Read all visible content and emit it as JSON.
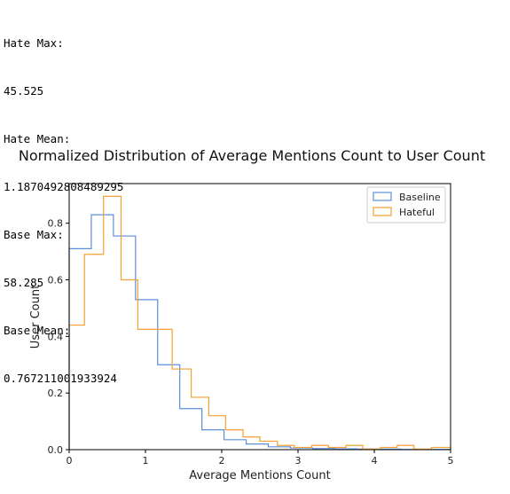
{
  "output_lines": [
    "Hate Max:",
    "45.525",
    "Hate Mean:",
    "1.1870492808489295",
    "Base Max:",
    "58.285",
    "Base Mean:",
    "0.767211001933924"
  ],
  "colors": {
    "baseline": "#5b8fdb",
    "hateful": "#f5a030",
    "axis": "#000000"
  },
  "chart_data": {
    "type": "step-histogram",
    "title": "Normalized Distribution of Average Mentions Count to User Count",
    "xlabel": "Average Mentions Count",
    "ylabel": "User Count",
    "xlim": [
      0,
      5
    ],
    "ylim": [
      0,
      0.94
    ],
    "xticks": [
      0,
      1,
      2,
      3,
      4,
      5
    ],
    "yticks": [
      0.0,
      0.2,
      0.4,
      0.6,
      0.8
    ],
    "ytick_labels": [
      "0.0",
      "0.2",
      "0.4",
      "0.6",
      "0.8"
    ],
    "legend_position": "top-right",
    "bin_edges": [
      0,
      0.25,
      0.5,
      0.75,
      1.0,
      1.25,
      1.5,
      1.75,
      2.0,
      2.25,
      2.5,
      2.75,
      3.0,
      3.25,
      3.5,
      3.75,
      4.0,
      4.25,
      4.5,
      4.75,
      5.0
    ],
    "series": [
      {
        "name": "Baseline",
        "bin_edges": [
          0,
          0.29,
          0.58,
          0.87,
          1.16,
          1.45,
          1.74,
          2.03,
          2.32,
          2.61,
          2.9,
          3.19,
          3.48,
          3.77,
          4.06,
          4.35,
          4.64,
          5.0
        ],
        "values": [
          0.71,
          0.83,
          0.755,
          0.53,
          0.3,
          0.145,
          0.07,
          0.035,
          0.02,
          0.01,
          0.006,
          0.004,
          0.003,
          0.002,
          0.002,
          0.001,
          0.001
        ]
      },
      {
        "name": "Hateful",
        "bin_edges": [
          0,
          0.2,
          0.45,
          0.68,
          0.9,
          1.35,
          1.6,
          1.83,
          2.05,
          2.28,
          2.5,
          2.73,
          2.95,
          3.18,
          3.4,
          3.63,
          3.85,
          4.08,
          4.3,
          4.52,
          4.75,
          5.0
        ],
        "values": [
          0.44,
          0.69,
          0.895,
          0.6,
          0.425,
          0.285,
          0.185,
          0.12,
          0.07,
          0.045,
          0.03,
          0.015,
          0.008,
          0.015,
          0.008,
          0.015,
          0.002,
          0.008,
          0.015,
          0.002,
          0.008
        ]
      }
    ]
  }
}
